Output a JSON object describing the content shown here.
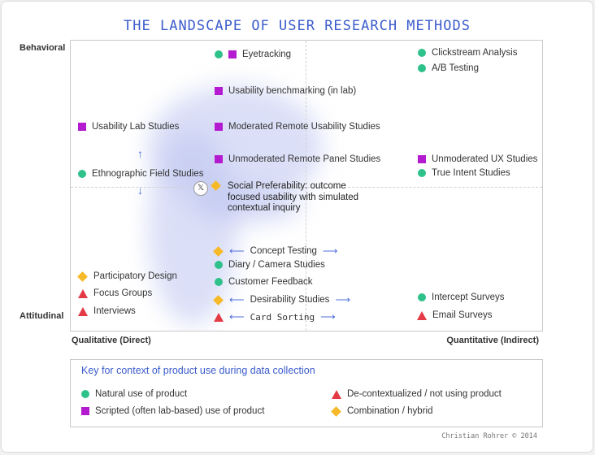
{
  "title": "THE LANDSCAPE OF USER RESEARCH METHODS",
  "axes": {
    "top": "Behavioral",
    "bottom": "Attitudinal",
    "left": "Qualitative (Direct)",
    "right": "Quantitative (Indirect)"
  },
  "colors": {
    "natural": "#2fc18a",
    "scripted": "#b41bd1",
    "decontext": "#e33a46",
    "hybrid": "#f6b928",
    "accent": "#3b5ccc"
  },
  "methods": {
    "eyetracking": "Eyetracking",
    "clickstream": "Clickstream Analysis",
    "ab_testing": "A/B Testing",
    "usability_benchmarking": "Usability benchmarking (in lab)",
    "usability_lab": "Usability Lab Studies",
    "moderated_remote": "Moderated Remote Usability Studies",
    "unmoderated_remote_panel": "Unmoderated Remote Panel Studies",
    "unmoderated_ux": "Unmoderated UX Studies",
    "ethnographic": "Ethnographic Field Studies",
    "true_intent": "True Intent Studies",
    "social_pref_1": "Social Preferability: outcome",
    "social_pref_2": "focused usability with simulated",
    "social_pref_3": "contextual inquiry",
    "concept_testing": "Concept Testing",
    "diary": "Diary / Camera Studies",
    "customer_feedback": "Customer Feedback",
    "participatory": "Participatory Design",
    "focus_groups": "Focus Groups",
    "interviews": "Interviews",
    "desirability": "Desirability Studies",
    "card_sorting": "Card Sorting",
    "intercept": "Intercept Surveys",
    "email_surveys": "Email Surveys"
  },
  "key": {
    "title": "Key for context of product use during data collection",
    "natural": "Natural use of product",
    "scripted": "Scripted (often lab-based) use of product",
    "decontext": "De-contextualized / not using product",
    "hybrid": "Combination / hybrid"
  },
  "credit": "Christian Rohrer  © 2014"
}
